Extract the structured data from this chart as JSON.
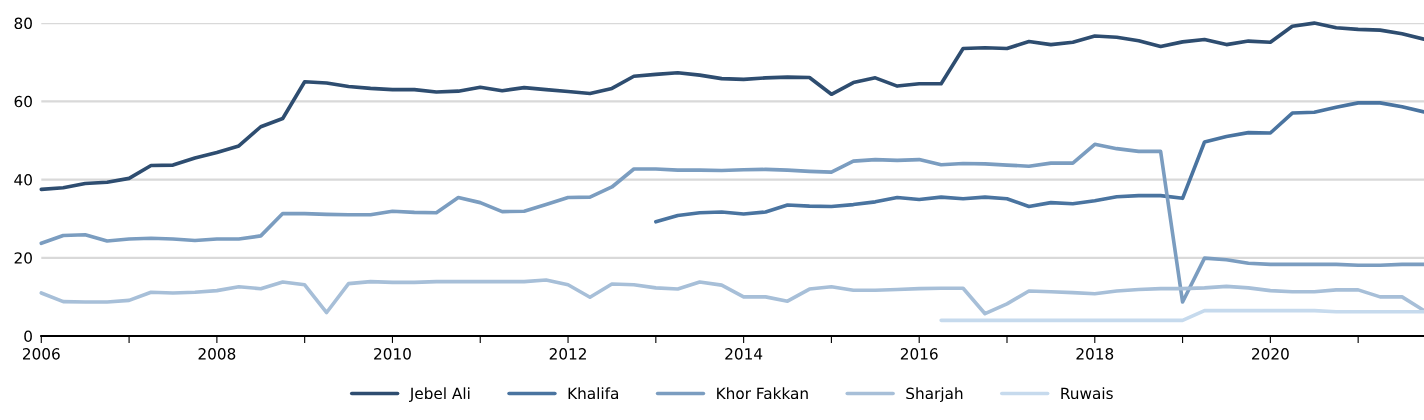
{
  "chart_data": {
    "type": "line",
    "x": [
      2006,
      2006.25,
      2006.5,
      2006.75,
      2007,
      2007.25,
      2007.5,
      2007.75,
      2008,
      2008.25,
      2008.5,
      2008.75,
      2009,
      2009.25,
      2009.5,
      2009.75,
      2010,
      2010.25,
      2010.5,
      2010.75,
      2011,
      2011.25,
      2011.5,
      2011.75,
      2012,
      2012.25,
      2012.5,
      2012.75,
      2013,
      2013.25,
      2013.5,
      2013.75,
      2014,
      2014.25,
      2014.5,
      2014.75,
      2015,
      2015.25,
      2015.5,
      2015.75,
      2016,
      2016.25,
      2016.5,
      2016.75,
      2017,
      2017.25,
      2017.5,
      2017.75,
      2018,
      2018.25,
      2018.5,
      2018.75,
      2019,
      2019.25,
      2019.5,
      2019.75,
      2020,
      2020.25,
      2020.5,
      2020.75,
      2021,
      2021.25,
      2021.5,
      2021.75
    ],
    "series": [
      {
        "name": "Jebel Ali",
        "color": "#2e4d70",
        "values": [
          37.5,
          37.9,
          39,
          39.3,
          40.3,
          43.6,
          43.7,
          45.5,
          46.9,
          48.6,
          53.5,
          55.6,
          65,
          64.7,
          63.8,
          63.3,
          63,
          63,
          62.4,
          62.6,
          63.6,
          62.7,
          63.5,
          63,
          62.5,
          62,
          63.3,
          66.4,
          66.9,
          67.3,
          66.7,
          65.8,
          65.6,
          66,
          66.2,
          66.1,
          61.8,
          64.8,
          66,
          63.9,
          64.5,
          64.5,
          73.5,
          73.7,
          73.5,
          75.3,
          74.5,
          75.1,
          76.7,
          76.4,
          75.5,
          74,
          75.2,
          75.8,
          74.5,
          75.4,
          75.1,
          79.2,
          80,
          78.8,
          78.4,
          78.2,
          77.3,
          75.9
        ]
      },
      {
        "name": "Khalifa",
        "color": "#4a74a0",
        "values": [
          null,
          null,
          null,
          null,
          null,
          null,
          null,
          null,
          null,
          null,
          null,
          null,
          null,
          null,
          null,
          null,
          null,
          null,
          null,
          null,
          null,
          null,
          null,
          null,
          null,
          null,
          null,
          null,
          29.2,
          30.8,
          31.5,
          31.7,
          31.2,
          31.7,
          33.5,
          33.2,
          33.1,
          33.6,
          34.3,
          35.4,
          34.9,
          35.5,
          35.1,
          35.5,
          35.1,
          33.1,
          34.1,
          33.8,
          34.6,
          35.6,
          35.9,
          35.9,
          35.2,
          49.6,
          51,
          52,
          51.9,
          57,
          57.2,
          58.5,
          59.6,
          59.6,
          58.6,
          57.3
        ]
      },
      {
        "name": "Khor Fakkan",
        "color": "#7b9dc0",
        "values": [
          23.7,
          25.7,
          25.9,
          24.3,
          24.8,
          25,
          24.8,
          24.4,
          24.8,
          24.8,
          25.6,
          31.3,
          31.3,
          31.1,
          31,
          31,
          31.9,
          31.6,
          31.5,
          35.4,
          34.1,
          31.8,
          31.9,
          33.6,
          35.4,
          35.5,
          38.1,
          42.7,
          42.7,
          42.4,
          42.4,
          42.3,
          42.5,
          42.6,
          42.4,
          42.1,
          41.9,
          44.7,
          45.1,
          44.9,
          45.1,
          43.8,
          44.1,
          44,
          43.7,
          43.4,
          44.2,
          44.2,
          49,
          47.9,
          47.2,
          47.2,
          8.7,
          19.9,
          19.5,
          18.6,
          18.3,
          18.3,
          18.3,
          18.3,
          18.1,
          18.1,
          18.3,
          18.3
        ]
      },
      {
        "name": "Sharjah",
        "color": "#a7bfd8",
        "values": [
          11,
          8.8,
          8.7,
          8.7,
          9.1,
          11.2,
          11,
          11.2,
          11.6,
          12.6,
          12.1,
          13.8,
          13.1,
          6,
          13.4,
          13.9,
          13.7,
          13.7,
          13.9,
          13.9,
          13.9,
          13.9,
          13.9,
          14.3,
          13.1,
          9.9,
          13.3,
          13.1,
          12.3,
          12,
          13.8,
          13,
          10,
          10,
          8.9,
          12,
          12.6,
          11.7,
          11.7,
          11.9,
          12.1,
          12.2,
          12.2,
          5.7,
          8.2,
          11.5,
          11.3,
          11.1,
          10.8,
          11.5,
          11.9,
          12.1,
          12.1,
          12.3,
          12.7,
          12.3,
          11.6,
          11.3,
          11.3,
          11.8,
          11.8,
          10,
          10,
          6.5
        ]
      },
      {
        "name": "Ruwais",
        "color": "#c6daed",
        "values": [
          null,
          null,
          null,
          null,
          null,
          null,
          null,
          null,
          null,
          null,
          null,
          null,
          null,
          null,
          null,
          null,
          null,
          null,
          null,
          null,
          null,
          null,
          null,
          null,
          null,
          null,
          null,
          null,
          null,
          null,
          null,
          null,
          null,
          null,
          null,
          null,
          null,
          null,
          null,
          null,
          null,
          4,
          4,
          4,
          4,
          4,
          4,
          4,
          4,
          4,
          4,
          4,
          4,
          6.5,
          6.5,
          6.5,
          6.5,
          6.5,
          6.5,
          6.2,
          6.2,
          6.2,
          6.2,
          6.2
        ]
      }
    ],
    "xlim": [
      2006,
      2021.75
    ],
    "xticks": [
      2006,
      {
        "value": 2007,
        "label": null
      },
      2008,
      {
        "value": 2009,
        "label": null
      },
      2010,
      {
        "value": 2011,
        "label": null
      },
      2012,
      {
        "value": 2013,
        "label": null
      },
      2014,
      {
        "value": 2015,
        "label": null
      },
      2016,
      {
        "value": 2017,
        "label": null
      },
      2018,
      {
        "value": 2019,
        "label": null
      },
      2020,
      {
        "value": 2021,
        "label": null
      }
    ],
    "ylim": [
      0,
      80
    ],
    "yticks": [
      0,
      20,
      40,
      60,
      80
    ],
    "grid": "y",
    "legend": "bottom",
    "marker": "none",
    "line_style": "solid"
  }
}
